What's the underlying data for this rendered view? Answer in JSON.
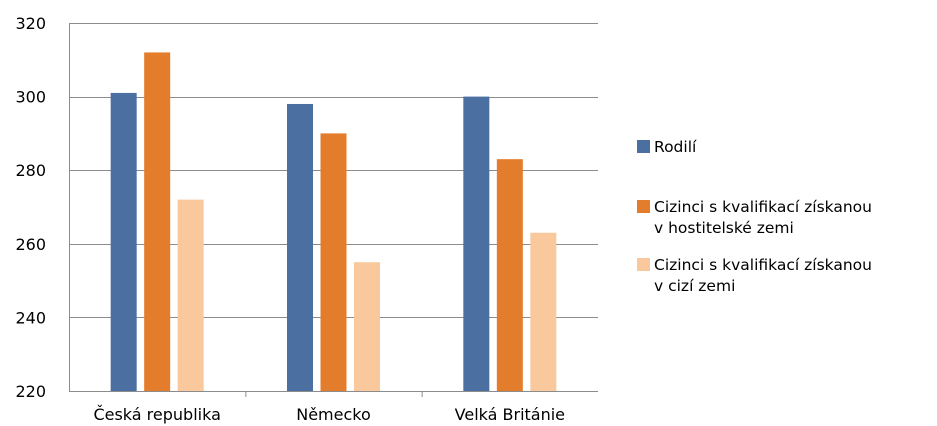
{
  "chart_data": {
    "type": "bar",
    "title": "",
    "xlabel": "",
    "ylabel": "",
    "categories": [
      "Česká republika",
      "Německo",
      "Velká Británie"
    ],
    "series": [
      {
        "name": "Rodilí",
        "values": [
          301,
          298,
          300
        ],
        "color": "#4a6fa0"
      },
      {
        "name": "Cizinci s kvalifikací získanou v hostitelské zemi",
        "name_lines": [
          "Cizinci s kvalifikací získanou",
          "v hostitelské zemi"
        ],
        "values": [
          312,
          290,
          283
        ],
        "color": "#e37d2b"
      },
      {
        "name": "Cizinci s kvalifikací získanou v cizí zemi",
        "name_lines": [
          "Cizinci s kvalifikací získanou",
          "v cizí zemi"
        ],
        "values": [
          272,
          255,
          263
        ],
        "color": "#f9c89d"
      }
    ],
    "ylim": [
      220,
      320
    ],
    "yticks": [
      220,
      240,
      260,
      280,
      300,
      320
    ],
    "grid": true,
    "legend": "right"
  }
}
